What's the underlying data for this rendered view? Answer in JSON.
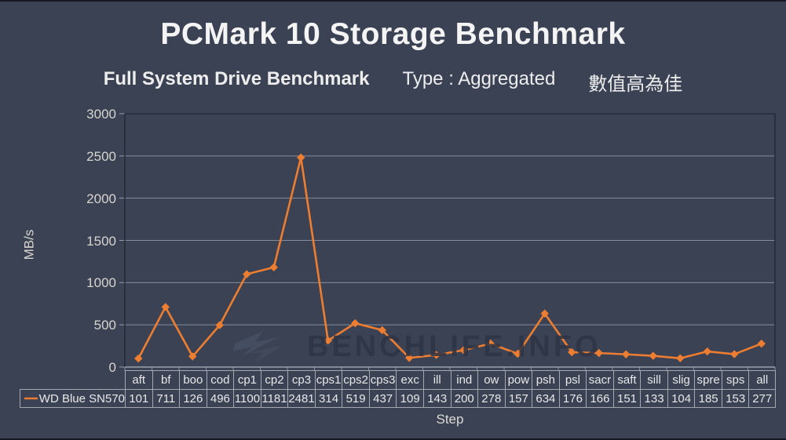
{
  "title": "PCMark 10 Storage Benchmark",
  "subtitle": {
    "benchmark_name": "Full System Drive Benchmark",
    "type_label": "Type : Aggregated",
    "note_cjk": "數值高為佳"
  },
  "watermark_text": "BENCHLIFE.INFO",
  "colors": {
    "background": "#3A4254",
    "series_orange": "#ED7D31",
    "gridline": "#9FA6B2",
    "plot_border": "#242B38",
    "axis_line": "#AEB4BE",
    "tick_text": "#D8D5CE",
    "table_border": "#A3A8B1",
    "table_text": "#E8E8E8"
  },
  "chart_data": {
    "type": "line",
    "title": "PCMark 10 Storage Benchmark",
    "xlabel": "Step",
    "ylabel": "MB/s",
    "ylim": [
      0,
      3000
    ],
    "ytick_step": 500,
    "grid": true,
    "marker": "diamond",
    "legend_position": "table-left",
    "categories": [
      "aft",
      "bf",
      "boo",
      "cod",
      "cp1",
      "cp2",
      "cp3",
      "cps1",
      "cps2",
      "cps3",
      "exc",
      "ill",
      "ind",
      "ow",
      "pow",
      "psh",
      "psl",
      "sacr",
      "saft",
      "sill",
      "slig",
      "spre",
      "sps",
      "all"
    ],
    "series": [
      {
        "name": "WD Blue SN570",
        "values": [
          101,
          711,
          126,
          496,
          1100,
          1181,
          2481,
          314,
          519,
          437,
          109,
          143,
          200,
          278,
          157,
          634,
          176,
          166,
          151,
          133,
          104,
          185,
          153,
          277
        ]
      }
    ]
  }
}
